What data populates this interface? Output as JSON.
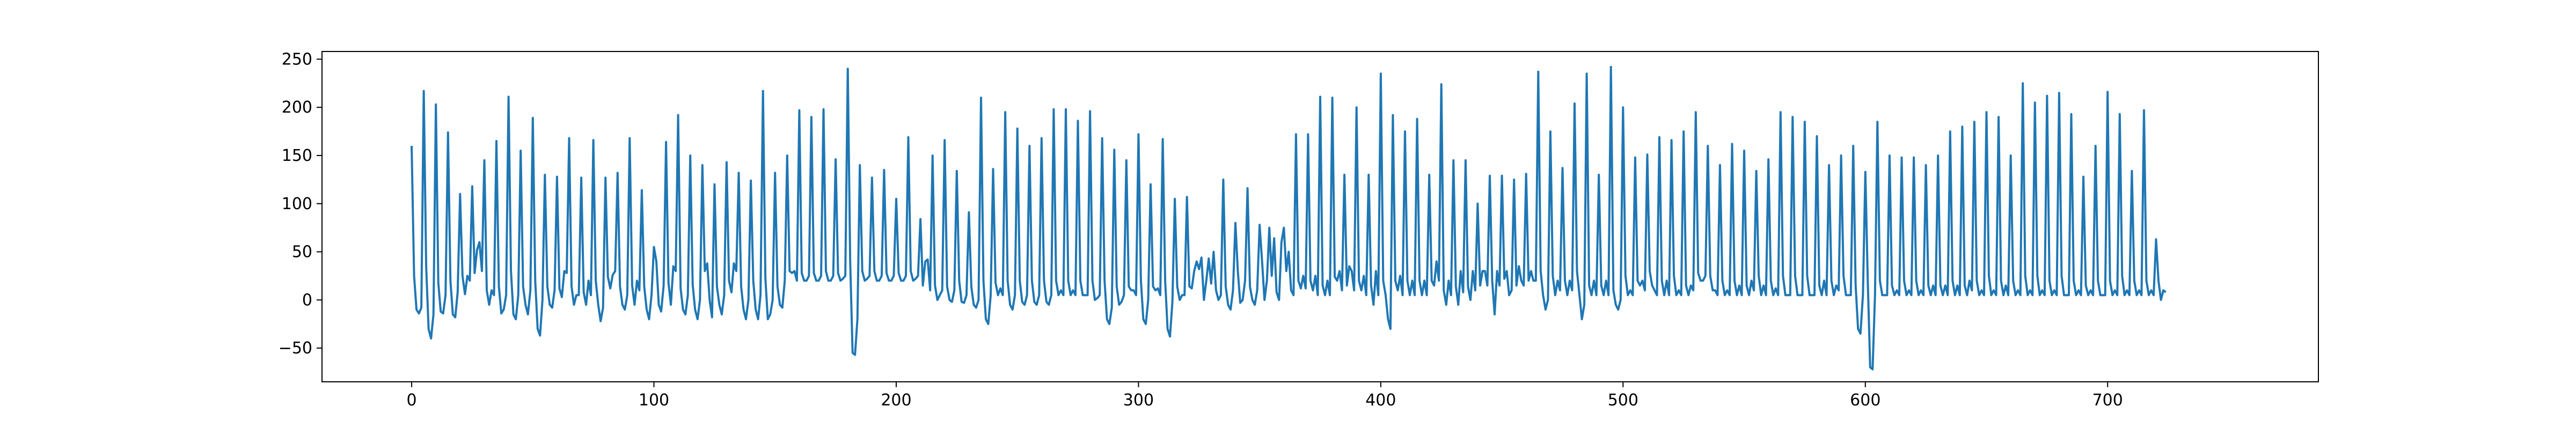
{
  "chart_data": {
    "type": "line",
    "title": "",
    "xlabel": "",
    "ylabel": "",
    "xlim": [
      -37,
      787
    ],
    "ylim": [
      -85,
      258
    ],
    "x_ticks": [
      0,
      100,
      200,
      300,
      400,
      500,
      600,
      700
    ],
    "y_ticks": [
      -50,
      0,
      50,
      100,
      150,
      200,
      250
    ],
    "x_tick_labels": [
      "0",
      "100",
      "200",
      "300",
      "400",
      "500",
      "600",
      "700"
    ],
    "y_tick_labels": [
      "−50",
      "0",
      "50",
      "100",
      "150",
      "200",
      "250"
    ],
    "grid": false,
    "legend": "none",
    "series": [
      {
        "color": "#1f77b4",
        "x_start": 0,
        "x_step": 1,
        "values": [
          160,
          25,
          -10,
          -14,
          -8,
          217,
          35,
          -30,
          -40,
          -15,
          203,
          18,
          -12,
          -14,
          5,
          174,
          20,
          -15,
          -18,
          8,
          110,
          25,
          6,
          25,
          20,
          118,
          28,
          52,
          60,
          30,
          145,
          10,
          -5,
          10,
          5,
          165,
          14,
          -14,
          -10,
          5,
          211,
          30,
          -15,
          -20,
          5,
          155,
          14,
          -5,
          -15,
          10,
          189,
          20,
          -30,
          -37,
          0,
          130,
          14,
          -5,
          -8,
          10,
          128,
          12,
          3,
          30,
          28,
          168,
          14,
          -5,
          5,
          5,
          127,
          8,
          -5,
          20,
          5,
          166,
          20,
          -5,
          -22,
          -8,
          127,
          24,
          12,
          26,
          30,
          132,
          14,
          -5,
          -10,
          5,
          168,
          15,
          -5,
          20,
          10,
          114,
          14,
          -10,
          -20,
          5,
          55,
          40,
          -5,
          -12,
          15,
          164,
          18,
          -5,
          35,
          30,
          192,
          12,
          -10,
          -15,
          5,
          150,
          16,
          -10,
          -20,
          0,
          140,
          30,
          38,
          0,
          -18,
          120,
          14,
          -5,
          -15,
          5,
          143,
          20,
          8,
          38,
          30,
          132,
          14,
          -10,
          -20,
          0,
          124,
          20,
          -10,
          -20,
          5,
          217,
          22,
          -20,
          -15,
          0,
          132,
          14,
          -5,
          -8,
          20,
          150,
          30,
          28,
          30,
          20,
          197,
          28,
          20,
          20,
          25,
          190,
          28,
          20,
          20,
          25,
          198,
          30,
          20,
          20,
          25,
          146,
          28,
          20,
          22,
          25,
          240,
          40,
          -55,
          -57,
          -20,
          140,
          30,
          20,
          22,
          25,
          127,
          30,
          20,
          20,
          25,
          135,
          28,
          20,
          20,
          25,
          105,
          28,
          20,
          20,
          25,
          169,
          30,
          20,
          22,
          25,
          84,
          15,
          40,
          42,
          10,
          150,
          15,
          0,
          5,
          10,
          166,
          14,
          0,
          -2,
          10,
          134,
          20,
          -2,
          -3,
          5,
          91,
          14,
          -5,
          -8,
          0,
          210,
          20,
          -20,
          -25,
          5,
          136,
          18,
          5,
          12,
          5,
          195,
          20,
          -5,
          -10,
          5,
          178,
          20,
          -2,
          -5,
          5,
          160,
          20,
          -2,
          -5,
          5,
          168,
          20,
          -2,
          -5,
          5,
          198,
          20,
          5,
          10,
          5,
          198,
          20,
          5,
          10,
          5,
          186,
          20,
          5,
          5,
          5,
          196,
          20,
          0,
          2,
          5,
          168,
          20,
          -20,
          -25,
          -8,
          156,
          14,
          -5,
          -2,
          5,
          145,
          14,
          10,
          10,
          5,
          172,
          20,
          -20,
          -25,
          0,
          120,
          14,
          10,
          12,
          5,
          167,
          20,
          -30,
          -38,
          -2,
          105,
          14,
          0,
          5,
          5,
          107,
          14,
          12,
          30,
          40,
          32,
          44,
          0,
          20,
          43,
          17,
          50,
          10,
          0,
          5,
          125,
          14,
          -5,
          -10,
          10,
          80,
          30,
          -3,
          0,
          20,
          116,
          14,
          0,
          -5,
          10,
          78,
          40,
          0,
          20,
          75,
          25,
          64,
          8,
          0,
          60,
          75,
          30,
          50,
          10,
          5,
          172,
          20,
          12,
          25,
          12,
          172,
          20,
          10,
          25,
          5,
          211,
          15,
          5,
          20,
          5,
          210,
          24,
          20,
          30,
          10,
          130,
          15,
          35,
          30,
          10,
          200,
          20,
          10,
          25,
          5,
          130,
          15,
          -5,
          30,
          5,
          235,
          20,
          5,
          -20,
          -30,
          192,
          20,
          10,
          25,
          5,
          175,
          20,
          5,
          20,
          5,
          188,
          20,
          5,
          20,
          5,
          130,
          20,
          15,
          40,
          20,
          224,
          10,
          -5,
          20,
          5,
          145,
          14,
          -5,
          30,
          8,
          145,
          14,
          0,
          30,
          10,
          100,
          15,
          30,
          30,
          15,
          129,
          20,
          -15,
          30,
          15,
          129,
          22,
          30,
          5,
          10,
          125,
          15,
          35,
          20,
          15,
          131,
          20,
          30,
          20,
          20,
          237,
          30,
          5,
          -10,
          0,
          175,
          25,
          5,
          20,
          10,
          137,
          20,
          5,
          20,
          10,
          204,
          30,
          5,
          -20,
          -5,
          235,
          15,
          5,
          20,
          5,
          130,
          15,
          5,
          20,
          5,
          242,
          10,
          -5,
          -10,
          0,
          200,
          25,
          5,
          10,
          5,
          148,
          20,
          15,
          20,
          10,
          151,
          30,
          15,
          10,
          5,
          169,
          20,
          5,
          20,
          5,
          166,
          25,
          5,
          10,
          5,
          175,
          15,
          5,
          15,
          10,
          195,
          28,
          20,
          20,
          25,
          160,
          25,
          10,
          10,
          5,
          140,
          20,
          5,
          10,
          5,
          162,
          20,
          5,
          15,
          5,
          155,
          15,
          5,
          20,
          10,
          134,
          25,
          5,
          15,
          5,
          146,
          20,
          5,
          12,
          5,
          195,
          25,
          5,
          5,
          5,
          190,
          25,
          5,
          5,
          5,
          185,
          25,
          5,
          5,
          5,
          170,
          15,
          5,
          20,
          5,
          140,
          20,
          5,
          15,
          10,
          150,
          25,
          5,
          5,
          5,
          160,
          15,
          -30,
          -35,
          5,
          133,
          20,
          -70,
          -72,
          5,
          185,
          20,
          5,
          5,
          5,
          150,
          15,
          5,
          10,
          5,
          148,
          20,
          5,
          10,
          5,
          148,
          20,
          5,
          10,
          5,
          140,
          15,
          5,
          15,
          5,
          150,
          15,
          5,
          15,
          5,
          175,
          20,
          5,
          15,
          5,
          180,
          15,
          5,
          20,
          10,
          185,
          20,
          5,
          10,
          5,
          195,
          25,
          5,
          10,
          5,
          190,
          20,
          5,
          15,
          5,
          150,
          20,
          5,
          10,
          5,
          225,
          25,
          5,
          10,
          5,
          205,
          25,
          5,
          10,
          5,
          212,
          20,
          5,
          10,
          5,
          215,
          25,
          5,
          5,
          5,
          193,
          20,
          5,
          10,
          5,
          128,
          15,
          5,
          10,
          5,
          160,
          20,
          5,
          5,
          5,
          216,
          20,
          5,
          10,
          5,
          193,
          25,
          5,
          10,
          5,
          134,
          20,
          5,
          10,
          5,
          197,
          20,
          5,
          10,
          5,
          63,
          20,
          0,
          10,
          8
        ]
      }
    ]
  }
}
